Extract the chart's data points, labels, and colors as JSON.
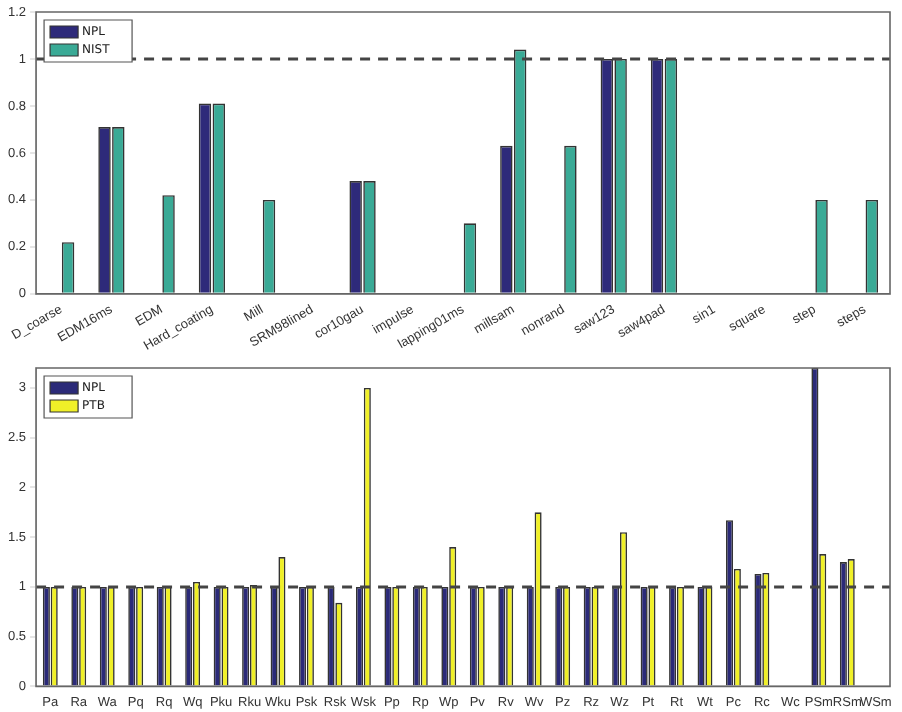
{
  "chart_data": [
    {
      "type": "bar",
      "categories": [
        "D_coarse",
        "EDM16ms",
        "EDM",
        "Hard_coating",
        "Mill",
        "SRM98lined",
        "cor10gau",
        "impulse",
        "lapping01ms",
        "millsam",
        "nonrand",
        "saw123",
        "saw4pad",
        "sin1",
        "square",
        "step",
        "steps"
      ],
      "series": [
        {
          "name": "NPL",
          "color": "#2e2a7a",
          "values": [
            null,
            0.71,
            null,
            0.81,
            null,
            null,
            0.48,
            null,
            null,
            0.63,
            null,
            1,
            1,
            null,
            null,
            null,
            null
          ]
        },
        {
          "name": "NIST",
          "color": "#3aaa96",
          "values": [
            0.22,
            0.71,
            0.42,
            0.81,
            0.4,
            null,
            0.48,
            null,
            0.3,
            1.04,
            0.63,
            1,
            1,
            null,
            null,
            0.4,
            0.4
          ]
        }
      ],
      "ylim": [
        0,
        1.2
      ],
      "yticks": [
        0,
        0.2,
        0.4,
        0.6,
        0.8,
        1,
        1.2
      ],
      "grid": false,
      "legend": "top left",
      "ref_lines": [
        {
          "axis": "y",
          "value": 1,
          "line_style": "dashed",
          "color": "#444444"
        }
      ]
    },
    {
      "type": "bar",
      "categories": [
        "Pa",
        "Ra",
        "Wa",
        "Pq",
        "Rq",
        "Wq",
        "Pku",
        "Rku",
        "Wku",
        "Psk",
        "Rsk",
        "Wsk",
        "Pp",
        "Rp",
        "Wp",
        "Pv",
        "Rv",
        "Wv",
        "Pz",
        "Rz",
        "Wz",
        "Pt",
        "Rt",
        "Wt",
        "Pc",
        "Rc",
        "Wc",
        "PSm",
        "RSm",
        "WSm"
      ],
      "series": [
        {
          "name": "NPL",
          "color": "#2b2a78",
          "values": [
            1,
            1,
            1,
            1,
            1,
            1,
            1,
            1,
            1,
            1,
            1,
            1,
            1,
            1,
            1,
            1,
            1,
            1,
            1,
            1,
            1,
            1,
            1,
            1,
            1.67,
            1.13,
            null,
            3.2,
            1.25,
            null
          ]
        },
        {
          "name": "PTB",
          "color": "#f0f028",
          "values": [
            1,
            1,
            1,
            1,
            1,
            1.05,
            1,
            1.02,
            1.3,
            1,
            0.84,
            3,
            1,
            1,
            1.4,
            1,
            1,
            1.75,
            1,
            1,
            1.55,
            1,
            1,
            1,
            1.18,
            1.14,
            null,
            1.33,
            1.28,
            null
          ]
        }
      ],
      "ylim": [
        0,
        3.2
      ],
      "yticks": [
        0,
        0.5,
        1,
        1.5,
        2,
        2.5,
        3
      ],
      "grid": false,
      "legend": "top left",
      "ref_lines": [
        {
          "axis": "y",
          "value": 1,
          "line_style": "dashed",
          "color": "#444444"
        }
      ]
    }
  ]
}
